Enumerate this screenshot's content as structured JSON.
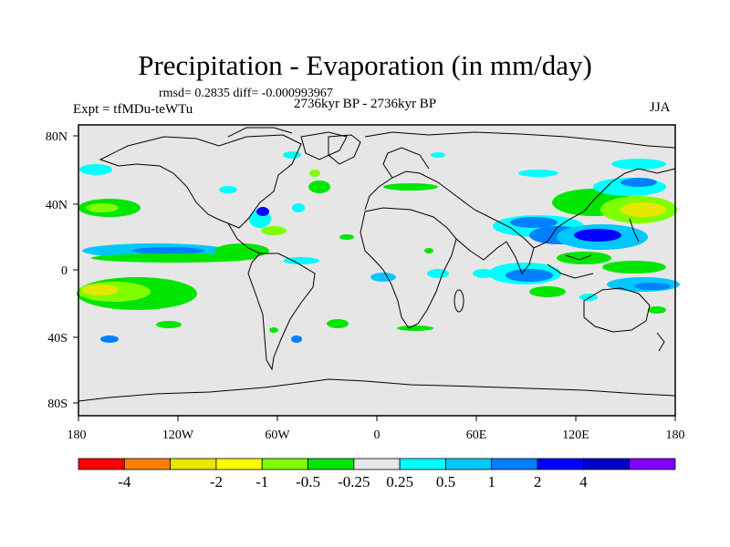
{
  "title": "Precipitation - Evaporation (in mm/day)",
  "stats": "rmsd= 0.2835 diff= -0.000993967",
  "subtitle": "2736kyr BP - 2736kyr BP",
  "experiment": "Expt = tfMDu-teWTu",
  "season": "JJA",
  "lat_labels": [
    "80N",
    "40N",
    "0",
    "40S",
    "80S"
  ],
  "lon_labels": [
    "180",
    "120W",
    "60W",
    "0",
    "60E",
    "120E",
    "180"
  ],
  "colorbar": {
    "colors": [
      "#ff0000",
      "#ff8000",
      "#e6e600",
      "#ffff00",
      "#80ff00",
      "#00e600",
      "#e6e6e6",
      "#00ffff",
      "#00c8ff",
      "#0080ff",
      "#0000ff",
      "#0000c8",
      "#8000ff"
    ],
    "labels": [
      "-4",
      "-2",
      "-1",
      "-0.5",
      "-0.25",
      "0.25",
      "0.5",
      "1",
      "2",
      "4"
    ]
  },
  "colors": {
    "ocean_neutral": "#e6e6e6",
    "coastline": "#000000"
  }
}
